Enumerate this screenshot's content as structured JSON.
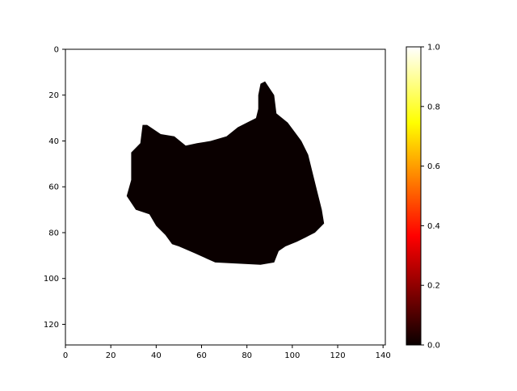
{
  "chart_data": {
    "type": "heatmap",
    "title": "",
    "xlabel": "",
    "ylabel": "",
    "image_size": [
      141,
      129
    ],
    "xlim": [
      0,
      141
    ],
    "ylim": [
      129,
      0
    ],
    "x_ticks": [
      0,
      20,
      40,
      60,
      80,
      100,
      120,
      140
    ],
    "y_ticks": [
      0,
      20,
      40,
      60,
      80,
      100,
      120
    ],
    "colormap": "hot",
    "vmin": 0.0,
    "vmax": 1.0,
    "background_value": 1.0,
    "region_value": 0.0,
    "region_outline": [
      [
        88,
        14
      ],
      [
        92,
        20
      ],
      [
        93,
        28
      ],
      [
        98,
        32
      ],
      [
        101,
        36
      ],
      [
        104,
        40
      ],
      [
        107,
        46
      ],
      [
        109,
        54
      ],
      [
        111,
        62
      ],
      [
        113,
        70
      ],
      [
        114,
        76
      ],
      [
        110,
        80
      ],
      [
        106,
        82
      ],
      [
        102,
        84
      ],
      [
        97,
        86
      ],
      [
        94,
        88
      ],
      [
        92,
        93
      ],
      [
        86,
        94
      ],
      [
        66,
        93
      ],
      [
        57,
        89
      ],
      [
        50,
        86
      ],
      [
        47,
        85
      ],
      [
        44,
        81
      ],
      [
        40,
        77
      ],
      [
        37,
        72
      ],
      [
        31,
        70
      ],
      [
        27,
        64
      ],
      [
        29,
        57
      ],
      [
        29,
        45
      ],
      [
        33,
        41
      ],
      [
        34,
        33
      ],
      [
        36,
        33
      ],
      [
        42,
        37
      ],
      [
        48,
        38
      ],
      [
        53,
        42
      ],
      [
        58,
        41
      ],
      [
        64,
        40
      ],
      [
        71,
        38
      ],
      [
        76,
        34
      ],
      [
        80,
        32
      ],
      [
        84,
        30
      ],
      [
        85,
        26
      ],
      [
        85,
        20
      ],
      [
        86,
        15
      ]
    ],
    "colorbar_ticks": [
      "0.0",
      "0.2",
      "0.4",
      "0.6",
      "0.8",
      "1.0"
    ]
  }
}
